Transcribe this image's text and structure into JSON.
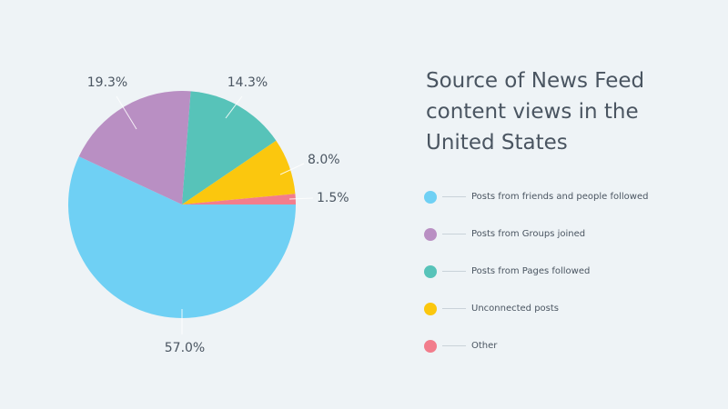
{
  "chart_data": {
    "type": "pie",
    "title": "Source of News Feed content views in the United States",
    "legend_placement": "right",
    "slices": [
      {
        "label": "Posts from friends and people followed",
        "value": 57.0,
        "value_label": "57.0%",
        "color": "#6fd0f4"
      },
      {
        "label": "Posts from Groups joined",
        "value": 19.3,
        "value_label": "19.3%",
        "color": "#b98fc3"
      },
      {
        "label": "Posts from Pages followed",
        "value": 14.3,
        "value_label": "14.3%",
        "color": "#57c3b9"
      },
      {
        "label": "Unconnected posts",
        "value": 8.0,
        "value_label": "8.0%",
        "color": "#fbc70e"
      },
      {
        "label": "Other",
        "value": 1.5,
        "value_label": "1.5%",
        "color": "#f27d8c"
      }
    ]
  }
}
